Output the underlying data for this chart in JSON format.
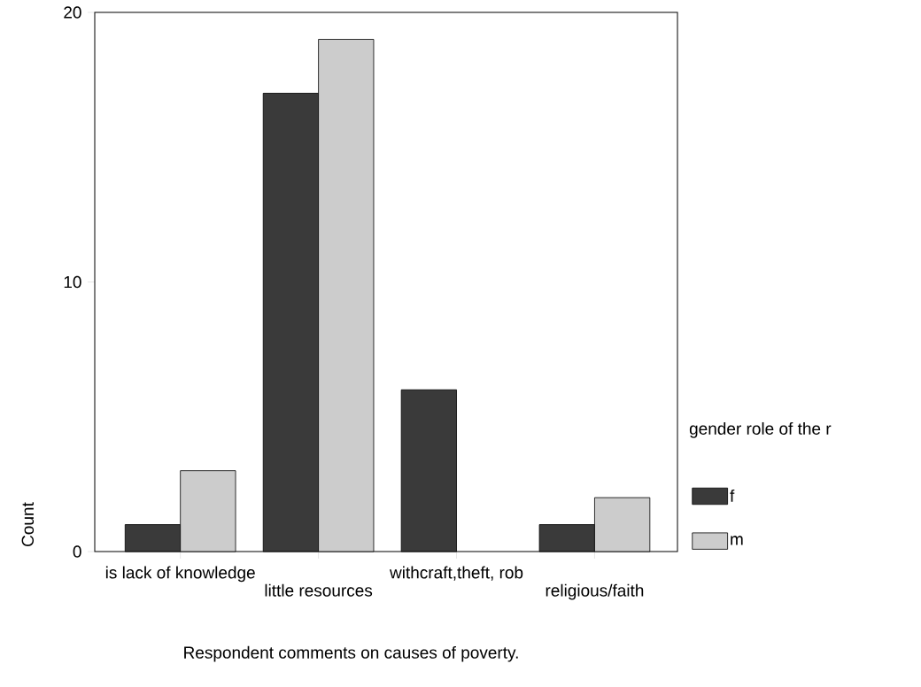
{
  "chart_data": {
    "type": "bar",
    "xlabel": "Respondent comments on causes of poverty.",
    "ylabel": "Count",
    "legend_title": "gender role of the r",
    "legend": "right",
    "categories": [
      "is lack of knowledge",
      "little resources",
      "withcraft,theft, rob",
      "religious/faith"
    ],
    "series": [
      {
        "name": "f",
        "color": "#3a3a3a",
        "values": [
          1,
          17,
          6,
          1
        ]
      },
      {
        "name": "m",
        "color": "#cccccc",
        "values": [
          3,
          19,
          null,
          2
        ]
      }
    ],
    "ylim": [
      0,
      20
    ],
    "yticks": [
      0,
      10,
      20
    ]
  }
}
